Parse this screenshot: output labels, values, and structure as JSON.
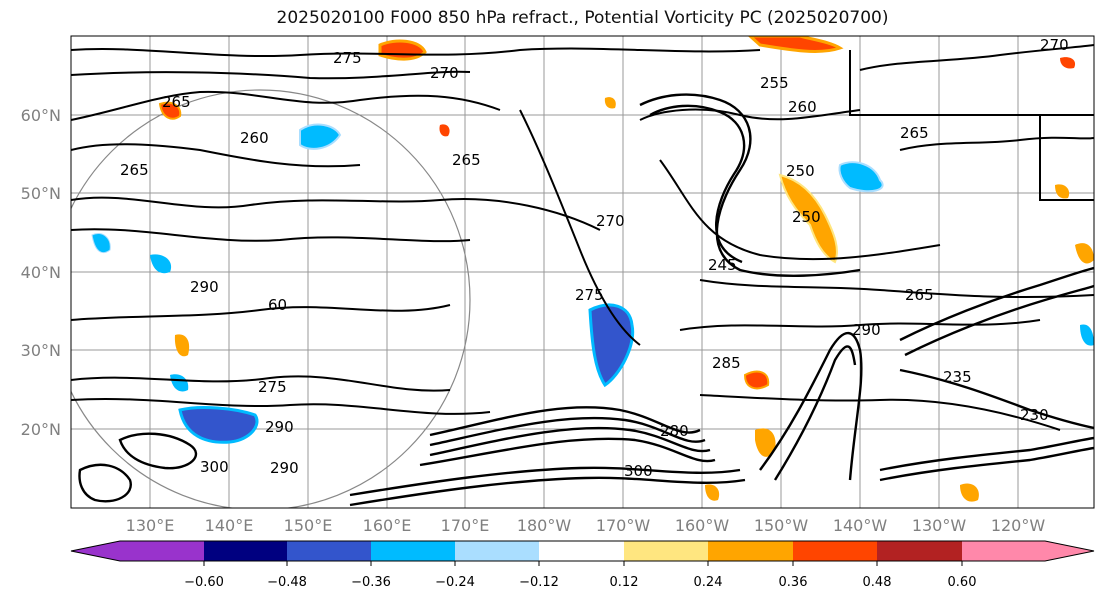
{
  "title": "2025020100 F000 850 hPa refract., Potential Vorticity PC (2025020700)",
  "map": {
    "lat_labels": [
      "60°N",
      "50°N",
      "40°N",
      "30°N",
      "20°N"
    ],
    "lon_labels": [
      "130°E",
      "140°E",
      "150°E",
      "160°E",
      "170°E",
      "180°W",
      "170°W",
      "160°W",
      "150°W",
      "140°W",
      "130°W",
      "120°W"
    ],
    "contour_labels": [
      "275",
      "270",
      "265",
      "260",
      "265",
      "255",
      "260",
      "265",
      "250",
      "250",
      "245",
      "270",
      "275",
      "265",
      "290",
      "285",
      "275",
      "290",
      "280",
      "290",
      "300",
      "235",
      "230",
      "290",
      "300",
      "60",
      "265",
      "270"
    ]
  },
  "colorbar": {
    "ticks": [
      "−0.60",
      "−0.48",
      "−0.36",
      "−0.24",
      "−0.12",
      "0.12",
      "0.24",
      "0.36",
      "0.48",
      "0.60"
    ],
    "colors": [
      "#9933cc",
      "#000080",
      "#3355cc",
      "#00bbff",
      "#aadeff",
      "#ffffff",
      "#ffe680",
      "#ffa500",
      "#ff4500",
      "#b22222",
      "#ff88aa"
    ]
  }
}
